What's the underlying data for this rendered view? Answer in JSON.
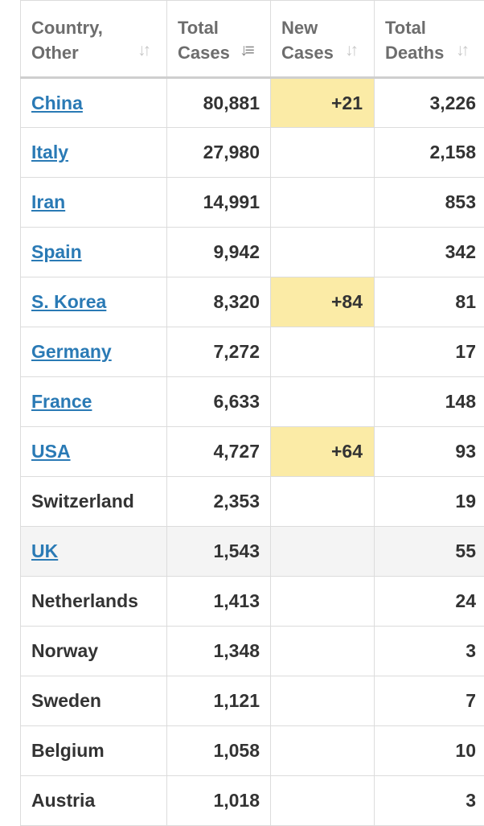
{
  "header": {
    "country_line1": "Country,",
    "country_line2": "Other",
    "total_cases_line1": "Total",
    "total_cases_line2": "Cases",
    "new_cases_line1": "New",
    "new_cases_line2": "Cases",
    "total_deaths_line1": "Total",
    "total_deaths_line2": "Deaths",
    "sort_icon": "sort-both-icon",
    "sort_active_icon": "sort-descending-icon"
  },
  "rows": [
    {
      "country": "China",
      "total_cases": "80,881",
      "new_cases": "+21",
      "total_deaths": "3,226",
      "linked": true,
      "highlight": true
    },
    {
      "country": "Italy",
      "total_cases": "27,980",
      "new_cases": "",
      "total_deaths": "2,158",
      "linked": true,
      "highlight": false
    },
    {
      "country": "Iran",
      "total_cases": "14,991",
      "new_cases": "",
      "total_deaths": "853",
      "linked": true,
      "highlight": false
    },
    {
      "country": "Spain",
      "total_cases": "9,942",
      "new_cases": "",
      "total_deaths": "342",
      "linked": true,
      "highlight": false
    },
    {
      "country": "S. Korea",
      "total_cases": "8,320",
      "new_cases": "+84",
      "total_deaths": "81",
      "linked": true,
      "highlight": true
    },
    {
      "country": "Germany",
      "total_cases": "7,272",
      "new_cases": "",
      "total_deaths": "17",
      "linked": true,
      "highlight": false
    },
    {
      "country": "France",
      "total_cases": "6,633",
      "new_cases": "",
      "total_deaths": "148",
      "linked": true,
      "highlight": false
    },
    {
      "country": "USA",
      "total_cases": "4,727",
      "new_cases": "+64",
      "total_deaths": "93",
      "linked": true,
      "highlight": true
    },
    {
      "country": "Switzerland",
      "total_cases": "2,353",
      "new_cases": "",
      "total_deaths": "19",
      "linked": false,
      "highlight": false
    },
    {
      "country": "UK",
      "total_cases": "1,543",
      "new_cases": "",
      "total_deaths": "55",
      "linked": true,
      "highlight": false
    },
    {
      "country": "Netherlands",
      "total_cases": "1,413",
      "new_cases": "",
      "total_deaths": "24",
      "linked": false,
      "highlight": false
    },
    {
      "country": "Norway",
      "total_cases": "1,348",
      "new_cases": "",
      "total_deaths": "3",
      "linked": false,
      "highlight": false
    },
    {
      "country": "Sweden",
      "total_cases": "1,121",
      "new_cases": "",
      "total_deaths": "7",
      "linked": false,
      "highlight": false
    },
    {
      "country": "Belgium",
      "total_cases": "1,058",
      "new_cases": "",
      "total_deaths": "10",
      "linked": false,
      "highlight": false
    },
    {
      "country": "Austria",
      "total_cases": "1,018",
      "new_cases": "",
      "total_deaths": "3",
      "linked": false,
      "highlight": false
    }
  ],
  "colors": {
    "link": "#2a7ab5",
    "new_cases_highlight": "#fbeba6",
    "hover_row": "#f4f4f4",
    "text": "#333333",
    "header_text": "#6d6d6d"
  }
}
